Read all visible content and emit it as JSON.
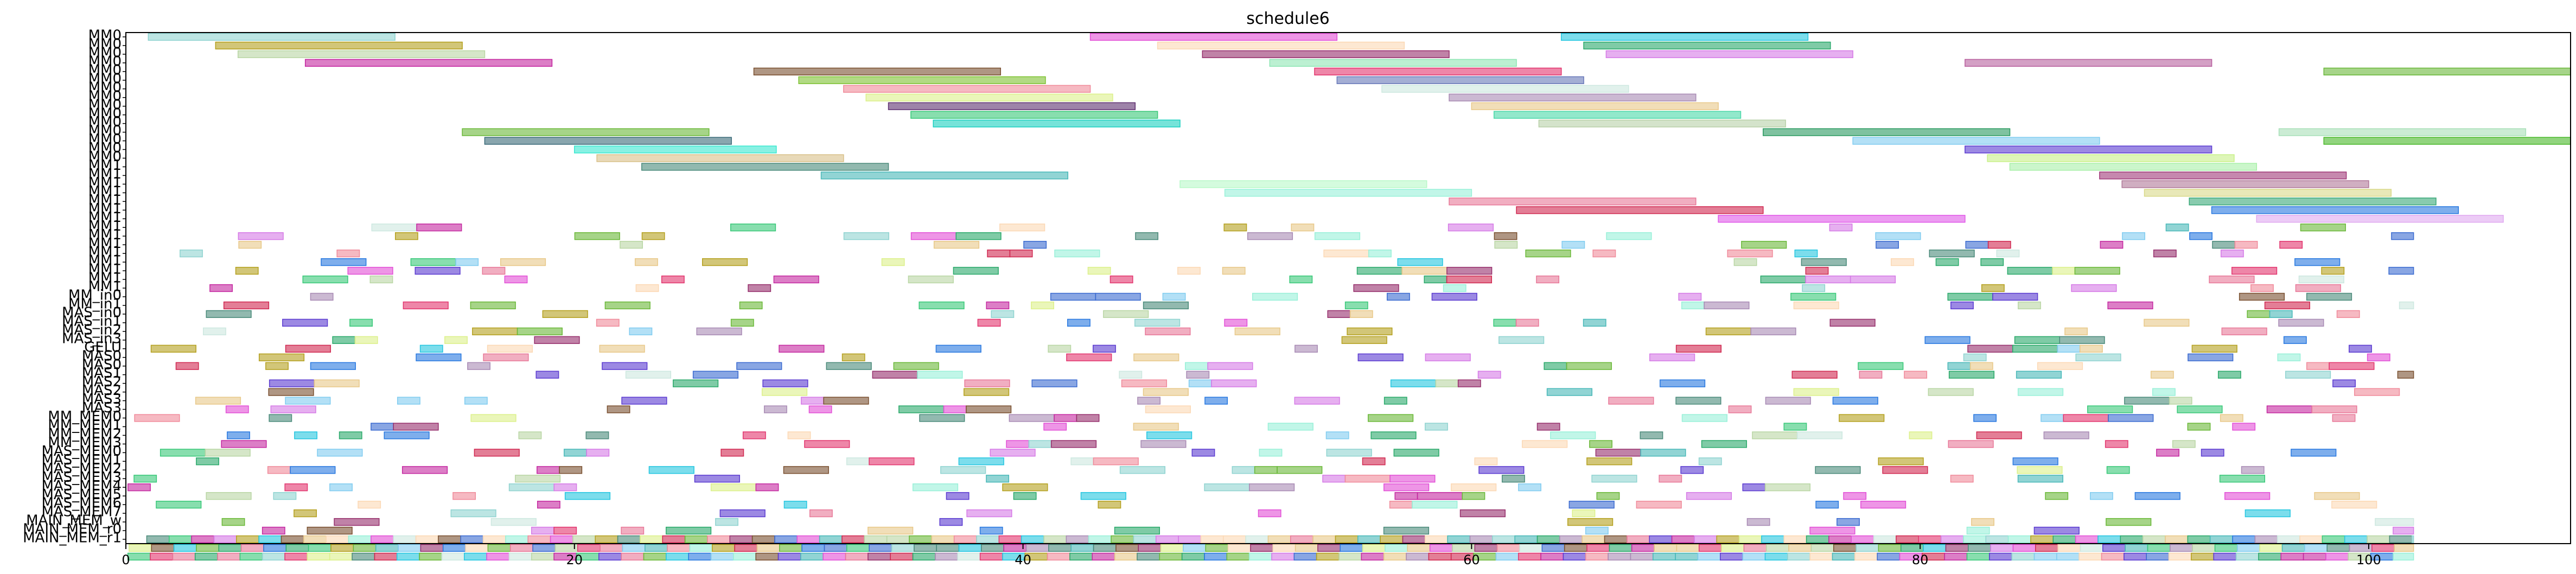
{
  "chart_data": {
    "type": "gantt",
    "title": "schedule6",
    "xlabel": "",
    "ylabel": "",
    "xlim": [
      0,
      109
    ],
    "x_ticks": [
      0,
      20,
      40,
      60,
      80,
      100
    ],
    "rows": [
      "MM0",
      "MM0",
      "MM0",
      "MM0",
      "MM0",
      "MM0",
      "MM0",
      "MM0",
      "MM0",
      "MM0",
      "MM0",
      "MM0",
      "MM0",
      "MM0",
      "MM0",
      "MM1",
      "MM1",
      "MM1",
      "MM1",
      "MM1",
      "MM1",
      "MM1",
      "MM1",
      "MM1",
      "MM1",
      "MM1",
      "MM1",
      "MM1",
      "MM1",
      "MM1",
      "MM_in0",
      "MM_in1",
      "MAS_in0",
      "MAS_in1",
      "MAS_in2",
      "MAS_in3",
      "GELU",
      "MAS0",
      "MAS0",
      "MAS1",
      "MAS2",
      "MAS2",
      "MAS3",
      "MAS3",
      "MM_MEM0",
      "MM_MEM1",
      "MM_MEM2",
      "MM_MEM3",
      "MAS_MEM0",
      "MAS_MEM1",
      "MAS_MEM2",
      "MAS_MEM3",
      "MAS_MEM4",
      "MAS_MEM5",
      "MAS_MEM6",
      "MAS_MEM7",
      "MAIN_MEM_w",
      "MAIN_MEM_r0",
      "MAIN_MEM_r1"
    ],
    "long_tasks": [
      {
        "row": 0,
        "start": 1,
        "end": 12,
        "color": "#8fd3d0"
      },
      {
        "row": 0,
        "start": 43,
        "end": 54,
        "color": "#e24fd6"
      },
      {
        "row": 0,
        "start": 64,
        "end": 75,
        "color": "#24c6e0"
      },
      {
        "row": 1,
        "start": 4,
        "end": 15,
        "color": "#b4a01e"
      },
      {
        "row": 1,
        "start": 46,
        "end": 57,
        "color": "#fcd8b4"
      },
      {
        "row": 1,
        "start": 65,
        "end": 76,
        "color": "#2aa96a"
      },
      {
        "row": 2,
        "start": 5,
        "end": 16,
        "color": "#b9d6a4"
      },
      {
        "row": 2,
        "start": 48,
        "end": 59,
        "color": "#962f6c"
      },
      {
        "row": 2,
        "start": 66,
        "end": 77,
        "color": "#d57ae6"
      },
      {
        "row": 3,
        "start": 8,
        "end": 19,
        "color": "#c428a0"
      },
      {
        "row": 3,
        "start": 51,
        "end": 62,
        "color": "#8fe6b4"
      },
      {
        "row": 3,
        "start": 82,
        "end": 93,
        "color": "#b8609e"
      },
      {
        "row": 4,
        "start": 28,
        "end": 39,
        "color": "#7a5030"
      },
      {
        "row": 4,
        "start": 53,
        "end": 64,
        "color": "#e2356e"
      },
      {
        "row": 4,
        "start": 98,
        "end": 109,
        "color": "#6ab83a"
      },
      {
        "row": 5,
        "start": 30,
        "end": 41,
        "color": "#7ec232"
      },
      {
        "row": 5,
        "start": 54,
        "end": 65,
        "color": "#6878b8"
      },
      {
        "row": 6,
        "start": 32,
        "end": 43,
        "color": "#f08a9a"
      },
      {
        "row": 6,
        "start": 56,
        "end": 67,
        "color": "#cde8e0"
      },
      {
        "row": 7,
        "start": 33,
        "end": 44,
        "color": "#dcf08a"
      },
      {
        "row": 7,
        "start": 59,
        "end": 70,
        "color": "#a88ab4"
      },
      {
        "row": 8,
        "start": 34,
        "end": 45,
        "color": "#5e3070"
      },
      {
        "row": 8,
        "start": 60,
        "end": 71,
        "color": "#e8c888"
      },
      {
        "row": 9,
        "start": 35,
        "end": 46,
        "color": "#38c878"
      },
      {
        "row": 9,
        "start": 61,
        "end": 72,
        "color": "#4ad8a8"
      },
      {
        "row": 10,
        "start": 36,
        "end": 47,
        "color": "#1ad0c0"
      },
      {
        "row": 10,
        "start": 63,
        "end": 74,
        "color": "#b8d0a8"
      },
      {
        "row": 11,
        "start": 15,
        "end": 26,
        "color": "#6ab838"
      },
      {
        "row": 11,
        "start": 73,
        "end": 84,
        "color": "#2a9a60"
      },
      {
        "row": 11,
        "start": 96,
        "end": 107,
        "color": "#a8e0b8"
      },
      {
        "row": 12,
        "start": 16,
        "end": 27,
        "color": "#3a6a78"
      },
      {
        "row": 12,
        "start": 77,
        "end": 88,
        "color": "#80ccf0"
      },
      {
        "row": 12,
        "start": 98,
        "end": 109,
        "color": "#48b828"
      },
      {
        "row": 13,
        "start": 20,
        "end": 29,
        "color": "#38e8d0"
      },
      {
        "row": 13,
        "start": 82,
        "end": 93,
        "color": "#5a3ad0"
      },
      {
        "row": 14,
        "start": 21,
        "end": 32,
        "color": "#d8c088"
      },
      {
        "row": 14,
        "start": 83,
        "end": 94,
        "color": "#c8f088"
      },
      {
        "row": 15,
        "start": 23,
        "end": 34,
        "color": "#4a8a7a"
      },
      {
        "row": 15,
        "start": 84,
        "end": 95,
        "color": "#a8f0a8"
      },
      {
        "row": 16,
        "start": 31,
        "end": 42,
        "color": "#48b8b8"
      },
      {
        "row": 16,
        "start": 88,
        "end": 99,
        "color": "#a03878"
      },
      {
        "row": 17,
        "start": 47,
        "end": 58,
        "color": "#b8f8c8"
      },
      {
        "row": 17,
        "start": 89,
        "end": 100,
        "color": "#b07898"
      },
      {
        "row": 18,
        "start": 49,
        "end": 60,
        "color": "#98f0d8"
      },
      {
        "row": 18,
        "start": 90,
        "end": 101,
        "color": "#d8d888"
      },
      {
        "row": 19,
        "start": 59,
        "end": 70,
        "color": "#e87898"
      },
      {
        "row": 19,
        "start": 92,
        "end": 103,
        "color": "#38a878"
      },
      {
        "row": 20,
        "start": 62,
        "end": 73,
        "color": "#d02850"
      },
      {
        "row": 20,
        "start": 93,
        "end": 104,
        "color": "#2878e0"
      },
      {
        "row": 21,
        "start": 71,
        "end": 82,
        "color": "#e058e8"
      },
      {
        "row": 21,
        "start": 95,
        "end": 106,
        "color": "#e0a8f0"
      }
    ],
    "short_task_start_row": 22,
    "short_task_end_row": 61,
    "short_task_time_range": [
      0,
      102
    ],
    "palette": [
      "#6ab838",
      "#e2356e",
      "#3a6ad0",
      "#b4a01e",
      "#38c878",
      "#c428a0",
      "#8fd3d0",
      "#e8c888",
      "#962f6c",
      "#24c6e0",
      "#f08a9a",
      "#7a5030",
      "#a88ab4",
      "#dcf08a",
      "#2aa96a",
      "#d57ae6",
      "#fcd8b4",
      "#5a3ad0",
      "#b9d6a4",
      "#48b8b8",
      "#e24fd6",
      "#4a8a7a",
      "#cde8e0",
      "#d02850",
      "#2878e0",
      "#80ccf0",
      "#98f0d8",
      "#e87898"
    ]
  }
}
